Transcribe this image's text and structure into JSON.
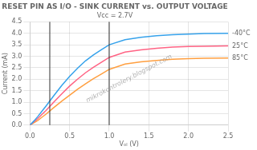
{
  "chart_data": {
    "type": "line",
    "title": "RESET PIN AS I/O - SINK CURRENT vs. OUTPUT VOLTAGE",
    "subtitle": "Vcc = 2.7V",
    "xlabel": "Vₒₗ (V)",
    "ylabel": "Current (mA)",
    "x": [
      0,
      0.05,
      0.1,
      0.15,
      0.2,
      0.3,
      0.4,
      0.5,
      0.6,
      0.7,
      0.8,
      0.9,
      1.0,
      1.2,
      1.4,
      1.6,
      1.8,
      2.0,
      2.2,
      2.5
    ],
    "series": [
      {
        "name": "-40°C",
        "values": [
          0,
          0.18,
          0.38,
          0.6,
          0.82,
          1.28,
          1.72,
          2.12,
          2.48,
          2.8,
          3.06,
          3.28,
          3.5,
          3.72,
          3.83,
          3.9,
          3.94,
          3.97,
          3.99,
          4.0
        ]
      },
      {
        "name": "25°C",
        "values": [
          0,
          0.14,
          0.29,
          0.46,
          0.63,
          1.0,
          1.36,
          1.7,
          2.0,
          2.28,
          2.52,
          2.74,
          2.95,
          3.18,
          3.28,
          3.35,
          3.4,
          3.43,
          3.44,
          3.45
        ]
      },
      {
        "name": "85°C",
        "values": [
          0,
          0.1,
          0.21,
          0.34,
          0.47,
          0.76,
          1.04,
          1.3,
          1.56,
          1.8,
          2.02,
          2.22,
          2.43,
          2.66,
          2.76,
          2.82,
          2.87,
          2.9,
          2.91,
          2.92
        ]
      }
    ],
    "xlim": [
      0,
      2.5
    ],
    "ylim": [
      0,
      4.5
    ],
    "xticks": [
      {
        "value": 0,
        "label": "0.0"
      },
      {
        "value": 0.5,
        "label": "0.5"
      },
      {
        "value": 1.0,
        "label": "1.0"
      },
      {
        "value": 1.5,
        "label": "1.5"
      },
      {
        "value": 2.0,
        "label": "2.0"
      },
      {
        "value": 2.5,
        "label": "2.5"
      }
    ],
    "yticks": [
      {
        "value": 0,
        "label": "0.0"
      },
      {
        "value": 0.5,
        "label": "0.5"
      },
      {
        "value": 1.0,
        "label": "1.0"
      },
      {
        "value": 1.5,
        "label": "1.5"
      },
      {
        "value": 2.0,
        "label": "2.0"
      },
      {
        "value": 2.5,
        "label": "2.5"
      },
      {
        "value": 3.0,
        "label": "3.0"
      },
      {
        "value": 3.5,
        "label": "3.5"
      },
      {
        "value": 4.0,
        "label": "4.0"
      },
      {
        "value": 4.5,
        "label": "4.5"
      }
    ],
    "vlines": [
      0.25,
      1.0
    ],
    "annotations": [
      "mikrokontrolery.blogspot.com"
    ],
    "grid": true
  }
}
